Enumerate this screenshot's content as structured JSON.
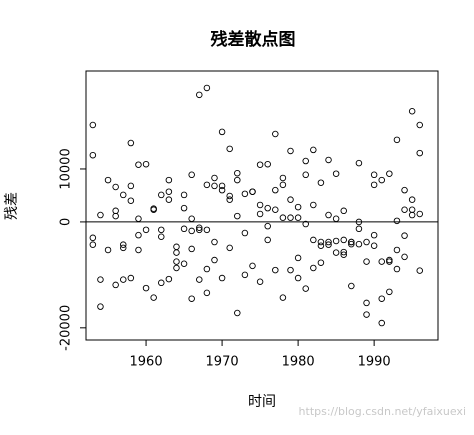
{
  "chart_data": {
    "type": "scatter",
    "title": "残差散点图",
    "x_label": "时间",
    "y_label": "残差",
    "watermark": "https://blog.csdn.net/yfaixuexi",
    "x": [
      1953,
      1953,
      1953,
      1953,
      1954,
      1954,
      1954,
      1955,
      1955,
      1956,
      1956,
      1956,
      1956,
      1957,
      1957,
      1957,
      1957,
      1958,
      1958,
      1958,
      1958,
      1959,
      1959,
      1959,
      1959,
      1960,
      1960,
      1960,
      1961,
      1961,
      1961,
      1962,
      1962,
      1962,
      1962,
      1963,
      1963,
      1963,
      1963,
      1964,
      1964,
      1964,
      1964,
      1965,
      1965,
      1965,
      1965,
      1966,
      1966,
      1966,
      1966,
      1966,
      1967,
      1967,
      1967,
      1967,
      1968,
      1968,
      1968,
      1968,
      1968,
      1969,
      1969,
      1969,
      1969,
      1970,
      1970,
      1970,
      1970,
      1971,
      1971,
      1971,
      1971,
      1972,
      1972,
      1972,
      1972,
      1973,
      1973,
      1973,
      1974,
      1974,
      1974,
      1975,
      1975,
      1975,
      1975,
      1976,
      1976,
      1976,
      1976,
      1977,
      1977,
      1977,
      1977,
      1978,
      1978,
      1978,
      1978,
      1979,
      1979,
      1979,
      1979,
      1980,
      1980,
      1980,
      1980,
      1981,
      1981,
      1981,
      1981,
      1982,
      1982,
      1982,
      1982,
      1983,
      1983,
      1983,
      1983,
      1984,
      1984,
      1984,
      1984,
      1985,
      1985,
      1985,
      1985,
      1986,
      1986,
      1986,
      1986,
      1987,
      1987,
      1987,
      1987,
      1988,
      1988,
      1988,
      1988,
      1989,
      1989,
      1989,
      1989,
      1990,
      1990,
      1990,
      1990,
      1991,
      1991,
      1991,
      1991,
      1992,
      1992,
      1992,
      1992,
      1993,
      1993,
      1993,
      1993,
      1994,
      1994,
      1994,
      1994,
      1995,
      1995,
      1995,
      1995,
      1996,
      1996,
      1996,
      1996
    ],
    "values": [
      18300,
      12600,
      -3000,
      -4300,
      1300,
      -10900,
      -16000,
      7900,
      -5300,
      6600,
      2100,
      1100,
      -11900,
      -4300,
      -4900,
      5100,
      -10900,
      6800,
      14900,
      4000,
      -10600,
      10800,
      600,
      -5300,
      -2500,
      10900,
      -1500,
      -12500,
      2300,
      -14300,
      2500,
      5100,
      -1500,
      -2800,
      -11500,
      5700,
      4200,
      7900,
      -10800,
      -5800,
      -4700,
      -7500,
      -8700,
      2600,
      -1300,
      5100,
      -7900,
      8900,
      600,
      -1700,
      -14500,
      -5100,
      24000,
      -1500,
      -1100,
      -10900,
      25300,
      7000,
      -1500,
      -8900,
      -13400,
      8300,
      6800,
      -3800,
      -7200,
      17000,
      6800,
      6000,
      -10600,
      13800,
      4900,
      -4900,
      4200,
      9200,
      7900,
      1100,
      -17200,
      5300,
      -10000,
      -2100,
      5700,
      5700,
      -8300,
      10800,
      3200,
      1500,
      -11300,
      10900,
      2600,
      -3400,
      -800,
      16600,
      6000,
      2300,
      -9100,
      8300,
      7000,
      800,
      -14300,
      13400,
      4200,
      -9100,
      800,
      800,
      2800,
      -6800,
      -10600,
      11500,
      8900,
      -400,
      -12600,
      13600,
      3200,
      -3400,
      -8700,
      7400,
      -3800,
      -4500,
      -7700,
      11700,
      1300,
      -4300,
      -3800,
      9100,
      600,
      -5800,
      -3600,
      2100,
      -3400,
      -6200,
      -5700,
      -4200,
      -12100,
      -3800,
      -3800,
      11100,
      0,
      -1300,
      -4200,
      -3800,
      -15300,
      -7500,
      -17500,
      8900,
      7000,
      -2500,
      -4500,
      7900,
      -7500,
      -14500,
      -19100,
      9100,
      -7500,
      -13200,
      -7200,
      15500,
      200,
      -5300,
      -8900,
      6000,
      2300,
      -2600,
      -6600,
      20900,
      4200,
      1300,
      2300,
      18300,
      13000,
      1500,
      -9200
    ],
    "xlim": [
      1952.1,
      1998.4
    ],
    "ylim": [
      -22300,
      28500
    ],
    "xticks": [
      1960,
      1970,
      1980,
      1990
    ],
    "yticks": [
      -20000,
      0,
      10000
    ],
    "hline": 0,
    "color": "#000000"
  }
}
